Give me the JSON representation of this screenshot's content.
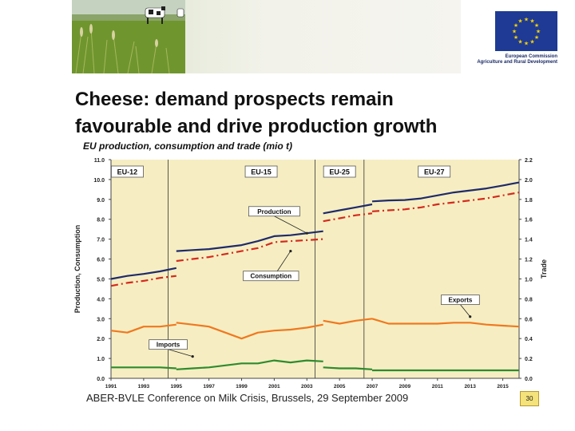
{
  "header": {
    "photo": "dairy-cows-pasture-photo",
    "logo": "eu-flag-logo",
    "org_line1": "European Commission",
    "org_line2": "Agriculture and Rural Development"
  },
  "slide": {
    "title_line1": "Cheese: demand prospects remain",
    "title_line2": "favourable and drive production growth",
    "subtitle": "EU production, consumption and trade (mio t)",
    "footer": "ABER-BVLE Conference on Milk Crisis, Brussels, 29 September 2009",
    "page_number": "30"
  },
  "chart_data": {
    "type": "line",
    "title": "EU production, consumption and trade (mio t)",
    "ylabel": "Production, Consumption",
    "y2label": "Trade",
    "ylim": [
      0,
      11
    ],
    "y2lim": [
      0,
      2.2
    ],
    "yticks": [
      "0.0",
      "1.0",
      "2.0",
      "3.0",
      "4.0",
      "5.0",
      "6.0",
      "7.0",
      "8.0",
      "9.0",
      "10.0",
      "11.0"
    ],
    "y2ticks": [
      "0.0",
      "0.2",
      "0.4",
      "0.6",
      "0.8",
      "1.0",
      "1.2",
      "1.4",
      "1.6",
      "1.8",
      "2.0",
      "2.2"
    ],
    "xticks": [
      "1991",
      "1993",
      "1995",
      "1997",
      "1999",
      "2001",
      "2003",
      "2005",
      "2007",
      "2009",
      "2011",
      "2013",
      "2015"
    ],
    "xlim": [
      1991,
      2016
    ],
    "period_boundaries": [
      1994.5,
      2003.5,
      2006.5
    ],
    "periods": [
      {
        "label": "EU-12",
        "x": 1992.0
      },
      {
        "label": "EU-15",
        "x": 2000.2
      },
      {
        "label": "EU-25",
        "x": 2005.0
      },
      {
        "label": "EU-27",
        "x": 2010.8
      }
    ],
    "annotations": [
      {
        "label": "Production",
        "x": 2001.0,
        "y": 8.4,
        "target": [
          2003.0,
          7.3
        ]
      },
      {
        "label": "Consumption",
        "x": 2000.8,
        "y": 5.15,
        "target": [
          2002.0,
          6.4
        ]
      },
      {
        "label": "Exports",
        "x": 2012.4,
        "y": 3.95,
        "target": [
          2013.0,
          3.1
        ]
      },
      {
        "label": "Imports",
        "x": 1994.5,
        "y": 1.7,
        "target": [
          1996.0,
          1.1
        ]
      }
    ],
    "series": [
      {
        "name": "Production",
        "axis": "left",
        "color": "#1f2a6b",
        "style": "solid",
        "segments": [
          {
            "x": [
              1991,
              1992,
              1993,
              1994,
              1995
            ],
            "y": [
              5.0,
              5.15,
              5.25,
              5.38,
              5.55
            ]
          },
          {
            "x": [
              1995,
              1996,
              1997,
              1998,
              1999,
              2000,
              2001,
              2002,
              2003,
              2004
            ],
            "y": [
              6.4,
              6.45,
              6.5,
              6.6,
              6.7,
              6.9,
              7.15,
              7.2,
              7.3,
              7.4
            ]
          },
          {
            "x": [
              2004,
              2005,
              2006,
              2007
            ],
            "y": [
              8.3,
              8.45,
              8.6,
              8.75
            ]
          },
          {
            "x": [
              2007,
              2008,
              2009,
              2010,
              2011,
              2012,
              2013,
              2014,
              2015,
              2016
            ],
            "y": [
              8.9,
              8.95,
              8.97,
              9.05,
              9.2,
              9.35,
              9.45,
              9.55,
              9.7,
              9.85
            ]
          }
        ]
      },
      {
        "name": "Consumption",
        "axis": "left",
        "color": "#d42a1e",
        "style": "dashed",
        "segments": [
          {
            "x": [
              1991,
              1992,
              1993,
              1994,
              1995
            ],
            "y": [
              4.65,
              4.8,
              4.9,
              5.05,
              5.15
            ]
          },
          {
            "x": [
              1995,
              1996,
              1997,
              1998,
              1999,
              2000,
              2001,
              2002,
              2003,
              2004
            ],
            "y": [
              5.9,
              6.0,
              6.1,
              6.25,
              6.4,
              6.55,
              6.85,
              6.9,
              6.95,
              7.0
            ]
          },
          {
            "x": [
              2004,
              2005,
              2006,
              2007
            ],
            "y": [
              7.9,
              8.05,
              8.2,
              8.3
            ]
          },
          {
            "x": [
              2007,
              2008,
              2009,
              2010,
              2011,
              2012,
              2013,
              2014,
              2015,
              2016
            ],
            "y": [
              8.4,
              8.45,
              8.5,
              8.6,
              8.75,
              8.85,
              8.95,
              9.05,
              9.2,
              9.35
            ]
          }
        ]
      },
      {
        "name": "Exports",
        "axis": "right",
        "color": "#f07820",
        "style": "solid",
        "segments": [
          {
            "x": [
              1991,
              1992,
              1993,
              1994,
              1995
            ],
            "y": [
              0.48,
              0.46,
              0.52,
              0.52,
              0.54
            ]
          },
          {
            "x": [
              1995,
              1996,
              1997,
              1998,
              1999,
              2000,
              2001,
              2002,
              2003,
              2004
            ],
            "y": [
              0.56,
              0.54,
              0.52,
              0.46,
              0.4,
              0.46,
              0.48,
              0.49,
              0.51,
              0.54
            ]
          },
          {
            "x": [
              2004,
              2005,
              2006,
              2007
            ],
            "y": [
              0.58,
              0.55,
              0.58,
              0.6
            ]
          },
          {
            "x": [
              2007,
              2008,
              2009,
              2010,
              2011,
              2012,
              2013,
              2014,
              2015,
              2016
            ],
            "y": [
              0.6,
              0.55,
              0.55,
              0.55,
              0.55,
              0.56,
              0.56,
              0.54,
              0.53,
              0.52
            ]
          }
        ]
      },
      {
        "name": "Imports",
        "axis": "right",
        "color": "#2e8b2e",
        "style": "solid",
        "segments": [
          {
            "x": [
              1991,
              1992,
              1993,
              1994,
              1995
            ],
            "y": [
              0.11,
              0.11,
              0.11,
              0.11,
              0.1
            ]
          },
          {
            "x": [
              1995,
              1996,
              1997,
              1998,
              1999,
              2000,
              2001,
              2002,
              2003,
              2004
            ],
            "y": [
              0.09,
              0.1,
              0.11,
              0.13,
              0.15,
              0.15,
              0.18,
              0.16,
              0.18,
              0.17
            ]
          },
          {
            "x": [
              2004,
              2005,
              2006,
              2007
            ],
            "y": [
              0.11,
              0.1,
              0.1,
              0.09
            ]
          },
          {
            "x": [
              2007,
              2008,
              2009,
              2010,
              2011,
              2012,
              2013,
              2014,
              2015,
              2016
            ],
            "y": [
              0.08,
              0.08,
              0.08,
              0.08,
              0.08,
              0.08,
              0.08,
              0.08,
              0.08,
              0.08
            ]
          }
        ]
      }
    ],
    "legend": "none",
    "grid": false
  },
  "colors": {
    "plot_background": "#f6eec2",
    "axis": "#444444",
    "label_box_fill": "#ffffff",
    "label_box_border": "#555555"
  }
}
